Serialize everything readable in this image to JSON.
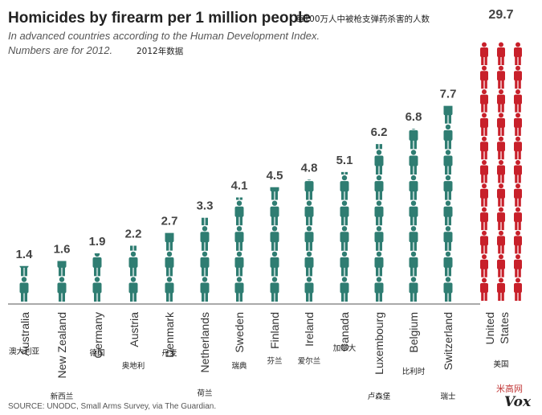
{
  "chart_data": {
    "type": "bar",
    "title": "Homicides by firearm per 1 million people",
    "title_cn": "每100万人中被枪支弹药杀害的人数",
    "subtitle": "In advanced countries according to the Human Development Index.",
    "subtitle2": "Numbers are for 2012.",
    "subtitle_cn": "2012年数据",
    "categories": [
      "Australia",
      "New Zealand",
      "Germany",
      "Austria",
      "Denmark",
      "Netherlands",
      "Sweden",
      "Finland",
      "Ireland",
      "Canada",
      "Luxembourg",
      "Belgium",
      "Switzerland",
      "United States"
    ],
    "categories_cn": [
      "澳大利亚",
      "新西兰",
      "德国",
      "奥地利",
      "丹麦",
      "荷兰",
      "瑞典",
      "芬兰",
      "爱尔兰",
      "加拿大",
      "卢森堡",
      "比利时",
      "瑞士",
      "美国"
    ],
    "values": [
      1.4,
      1.6,
      1.9,
      2.2,
      2.7,
      3.3,
      4.1,
      4.5,
      4.8,
      5.1,
      6.2,
      6.8,
      7.7,
      29.7
    ],
    "value_labels": [
      "1.4",
      "1.6",
      "1.9",
      "2.2",
      "2.7",
      "3.3",
      "4.1",
      "4.5",
      "4.8",
      "5.1",
      "6.2",
      "6.8",
      "7.7",
      "29.7"
    ],
    "highlight_index": 13,
    "source": "SOURCE: UNODC, Small Arms Survey, via The Guardian.",
    "colors": {
      "normal": "#2f7d72",
      "highlight": "#c8202a"
    }
  },
  "branding": {
    "logo": "Vox",
    "watermark": "米高网"
  }
}
